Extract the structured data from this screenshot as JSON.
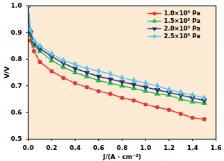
{
  "chart_data": {
    "type": "line",
    "x_label": "J/(A · cm⁻²)",
    "y_label": "V/V",
    "x": [
      0,
      0.02,
      0.05,
      0.1,
      0.2,
      0.3,
      0.4,
      0.5,
      0.6,
      0.7,
      0.8,
      0.9,
      1.0,
      1.1,
      1.2,
      1.3,
      1.4,
      1.5
    ],
    "series": [
      {
        "name": "1.0×10⁵ Pa",
        "color": "#e8332f",
        "marker": "circle",
        "values": [
          1.0,
          0.87,
          0.83,
          0.79,
          0.755,
          0.73,
          0.71,
          0.695,
          0.68,
          0.67,
          0.655,
          0.645,
          0.63,
          0.62,
          0.61,
          0.595,
          0.58,
          0.575
        ]
      },
      {
        "name": "1.5×10⁵ Pa",
        "color": "#2db34a",
        "marker": "triangle",
        "values": [
          1.0,
          0.89,
          0.85,
          0.83,
          0.795,
          0.77,
          0.75,
          0.735,
          0.72,
          0.71,
          0.7,
          0.69,
          0.68,
          0.67,
          0.665,
          0.65,
          0.64,
          0.635
        ]
      },
      {
        "name": "2.0×10⁵ Pa",
        "color": "#1f2f7a",
        "marker": "triangle-down",
        "values": [
          1.0,
          0.9,
          0.86,
          0.84,
          0.81,
          0.785,
          0.765,
          0.75,
          0.735,
          0.725,
          0.715,
          0.705,
          0.695,
          0.685,
          0.675,
          0.665,
          0.655,
          0.645
        ]
      },
      {
        "name": "2.5×10⁵ Pa",
        "color": "#5ec6e6",
        "marker": "diamond",
        "values": [
          1.0,
          0.91,
          0.87,
          0.85,
          0.82,
          0.795,
          0.78,
          0.765,
          0.755,
          0.745,
          0.73,
          0.72,
          0.71,
          0.7,
          0.685,
          0.675,
          0.665,
          0.655
        ]
      }
    ],
    "xlim": [
      0,
      1.6
    ],
    "xticks": [
      {
        "value": 0,
        "label": "0.0"
      },
      0.2,
      0.4,
      0.6,
      0.8,
      {
        "value": 1,
        "label": "1.0"
      },
      1.2,
      1.4,
      1.6
    ],
    "ylim": [
      0.5,
      1
    ],
    "yticks": [
      0.5,
      0.6,
      0.7,
      0.8,
      0.9,
      {
        "value": 1,
        "label": "1.0"
      }
    ],
    "grid": false,
    "legend": "top-right"
  }
}
